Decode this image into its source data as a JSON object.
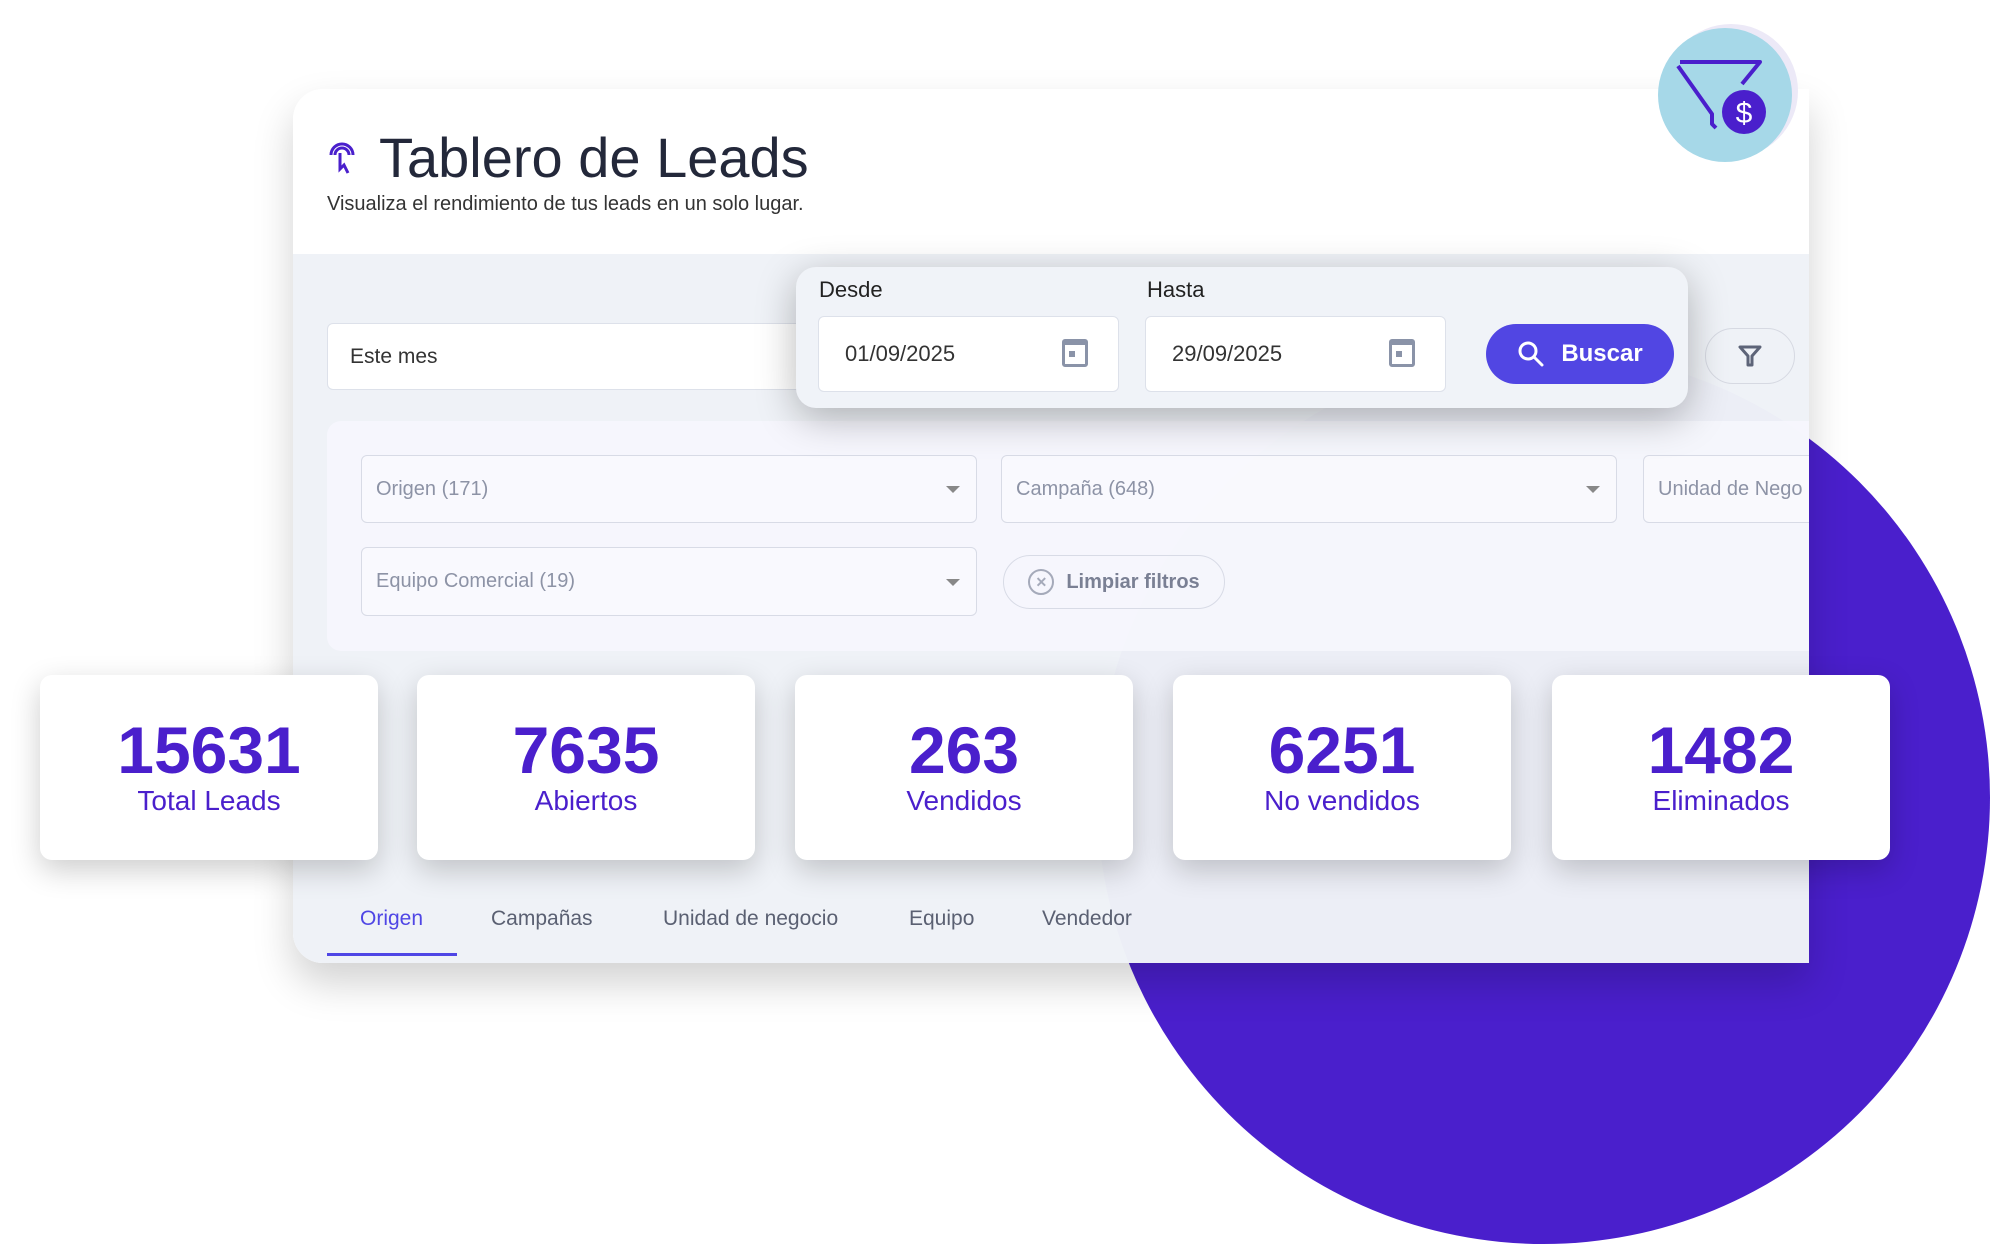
{
  "header": {
    "title": "Tablero de Leads",
    "subtitle": "Visualiza el rendimiento de tus leads en un solo lugar."
  },
  "period": {
    "value": "Este mes"
  },
  "date_range": {
    "from_label": "Desde",
    "from_value": "01/09/2025",
    "to_label": "Hasta",
    "to_value": "29/09/2025",
    "search_label": "Buscar"
  },
  "filters": {
    "origen": "Origen (171)",
    "campana": "Campaña (648)",
    "unidad": "Unidad de Nego",
    "equipo": "Equipo Comercial (19)",
    "clear_label": "Limpiar filtros"
  },
  "stats": [
    {
      "value": "15631",
      "label": "Total Leads"
    },
    {
      "value": "7635",
      "label": "Abiertos"
    },
    {
      "value": "263",
      "label": "Vendidos"
    },
    {
      "value": "6251",
      "label": "No vendidos"
    },
    {
      "value": "1482",
      "label": "Eliminados"
    }
  ],
  "tabs": [
    {
      "label": "Origen",
      "active": true
    },
    {
      "label": "Campañas"
    },
    {
      "label": "Unidad de negocio"
    },
    {
      "label": "Equipo"
    },
    {
      "label": "Vendedor"
    }
  ],
  "colors": {
    "accent": "#5146e3",
    "brand_purple": "#4a1fcc",
    "badge_bg": "#a6d8e8"
  }
}
